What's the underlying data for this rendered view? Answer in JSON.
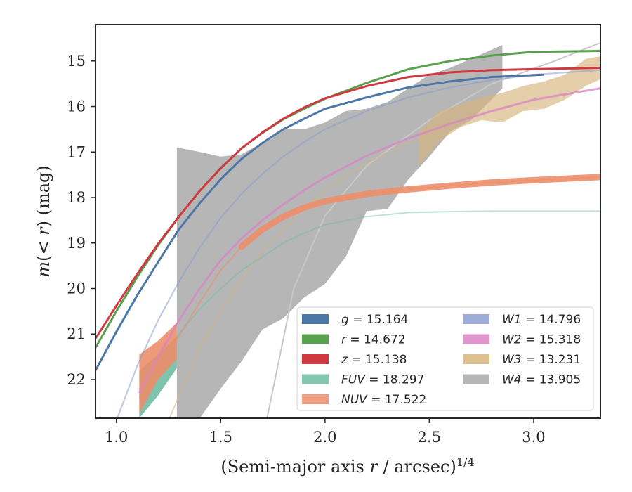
{
  "chart_data": {
    "type": "line",
    "xlabel_main": "(Semi-major axis ",
    "xlabel_var": "r",
    "xlabel_unit": " / arcsec)",
    "xlabel_exp": "1/4",
    "ylabel_pre": "m(< ",
    "ylabel_var": "r",
    "ylabel_post": ") (mag)",
    "xlim": [
      0.9,
      3.32
    ],
    "ylim": [
      22.85,
      14.2
    ],
    "y_inverted": true,
    "xticks": [
      1.0,
      1.5,
      2.0,
      2.5,
      3.0
    ],
    "xtick_labels": [
      "1.0",
      "1.5",
      "2.0",
      "2.5",
      "3.0"
    ],
    "yticks": [
      15,
      16,
      17,
      18,
      19,
      20,
      21,
      22
    ],
    "ytick_labels": [
      "15",
      "16",
      "17",
      "18",
      "19",
      "20",
      "21",
      "22"
    ],
    "grid": false,
    "legend_position": "lower right",
    "legend_columns": 2,
    "series": [
      {
        "name": "g",
        "value": "15.164",
        "color": "#4c78a8",
        "style": "line",
        "opacity": 1.0,
        "x": [
          0.9,
          1.0,
          1.1,
          1.2,
          1.3,
          1.4,
          1.5,
          1.6,
          1.7,
          1.8,
          1.9,
          2.0,
          2.2,
          2.4,
          2.6,
          2.8,
          3.05
        ],
        "y": [
          21.8,
          20.95,
          20.15,
          19.42,
          18.7,
          18.12,
          17.6,
          17.15,
          16.8,
          16.5,
          16.27,
          16.05,
          15.8,
          15.58,
          15.45,
          15.35,
          15.3
        ]
      },
      {
        "name": "r",
        "value": "14.672",
        "color": "#59a14f",
        "style": "line",
        "opacity": 1.0,
        "x": [
          0.9,
          1.0,
          1.1,
          1.2,
          1.3,
          1.4,
          1.5,
          1.6,
          1.7,
          1.8,
          1.9,
          2.0,
          2.2,
          2.4,
          2.6,
          2.8,
          3.0,
          3.32
        ],
        "y": [
          21.3,
          20.5,
          19.75,
          19.05,
          18.42,
          17.85,
          17.35,
          16.92,
          16.58,
          16.28,
          16.05,
          15.83,
          15.48,
          15.18,
          15.0,
          14.88,
          14.8,
          14.78
        ]
      },
      {
        "name": "z",
        "value": "15.138",
        "color": "#d0393f",
        "style": "line",
        "opacity": 1.0,
        "x": [
          0.9,
          1.0,
          1.1,
          1.2,
          1.3,
          1.4,
          1.5,
          1.6,
          1.7,
          1.8,
          1.9,
          2.0,
          2.2,
          2.4,
          2.6,
          2.8,
          3.0,
          3.32
        ],
        "y": [
          21.1,
          20.38,
          19.68,
          19.02,
          18.42,
          17.85,
          17.36,
          16.92,
          16.57,
          16.27,
          16.02,
          15.82,
          15.55,
          15.35,
          15.25,
          15.2,
          15.18,
          15.15
        ]
      },
      {
        "name": "FUV",
        "value": "18.297",
        "color": "#6fbca5",
        "style": "band+line",
        "opacity": 0.45,
        "x": [
          1.11,
          1.3,
          1.4,
          1.5,
          1.6,
          1.7,
          1.8,
          1.9,
          2.0,
          2.2,
          2.4,
          2.6,
          2.8,
          3.0,
          3.32
        ],
        "y": [
          22.4,
          21.0,
          20.45,
          20.0,
          19.6,
          19.3,
          19.0,
          18.78,
          18.6,
          18.42,
          18.33,
          18.31,
          18.3,
          18.3,
          18.3
        ]
      },
      {
        "name": "NUV",
        "value": "17.522",
        "color": "#ec8e6a",
        "style": "band+line",
        "opacity": 0.6,
        "x": [
          1.11,
          1.3,
          1.4,
          1.5,
          1.6,
          1.7,
          1.8,
          1.9,
          2.0,
          2.2,
          2.4,
          2.6,
          2.8,
          3.0,
          3.32
        ],
        "y": [
          22.2,
          21.05,
          20.3,
          19.6,
          19.08,
          18.7,
          18.42,
          18.22,
          18.08,
          17.92,
          17.82,
          17.74,
          17.67,
          17.62,
          17.55
        ]
      },
      {
        "name": "W1",
        "value": "14.796",
        "color": "#8c9fd0",
        "style": "line",
        "opacity": 0.55,
        "x": [
          1.0,
          1.1,
          1.2,
          1.3,
          1.4,
          1.5,
          1.6,
          1.7,
          1.8,
          1.9,
          2.0,
          2.2,
          2.4,
          2.6,
          2.8,
          3.0,
          3.32
        ],
        "y": [
          22.9,
          21.7,
          20.7,
          19.85,
          19.1,
          18.45,
          17.92,
          17.48,
          17.1,
          16.78,
          16.5,
          16.1,
          15.8,
          15.58,
          15.42,
          15.3,
          15.2
        ]
      },
      {
        "name": "W2",
        "value": "15.318",
        "color": "#d884c4",
        "style": "line",
        "opacity": 0.75,
        "x": [
          1.11,
          1.2,
          1.3,
          1.4,
          1.5,
          1.6,
          1.7,
          1.8,
          1.9,
          2.0,
          2.2,
          2.4,
          2.6,
          2.8,
          3.0,
          3.32
        ],
        "y": [
          22.3,
          21.5,
          20.7,
          20.0,
          19.38,
          18.9,
          18.5,
          18.15,
          17.84,
          17.56,
          17.08,
          16.7,
          16.38,
          16.1,
          15.85,
          15.6
        ]
      },
      {
        "name": "W3",
        "value": "13.231",
        "color": "#d6b57d",
        "style": "line+band",
        "opacity": 0.55,
        "x": [
          1.25,
          1.4,
          1.5,
          1.6,
          1.7,
          1.8,
          1.9,
          2.0,
          2.1,
          2.2,
          2.3,
          2.4,
          2.5
        ],
        "y": [
          22.9,
          21.3,
          20.5,
          19.8,
          19.2,
          18.7,
          18.25,
          17.85,
          17.52,
          17.25,
          17.0,
          16.8,
          16.62
        ]
      },
      {
        "name": "W4",
        "value": "13.905",
        "color": "#a9a9a9",
        "style": "band",
        "opacity": 0.85,
        "x": [
          1.29,
          1.4,
          1.5,
          1.6,
          1.7,
          1.8,
          1.9,
          2.0,
          2.1,
          2.2,
          2.3,
          2.4,
          2.5,
          2.6,
          2.7,
          2.85
        ],
        "y_upper": [
          16.9,
          17.0,
          17.1,
          17.05,
          16.8,
          16.5,
          16.5,
          16.35,
          16.1,
          16.05,
          15.9,
          15.6,
          15.3,
          15.15,
          14.95,
          14.65
        ],
        "y_lower": [
          22.85,
          22.85,
          22.2,
          21.6,
          20.9,
          20.65,
          20.2,
          19.9,
          19.3,
          18.3,
          18.25,
          17.6,
          17.1,
          16.55,
          16.3,
          15.6
        ]
      }
    ]
  }
}
